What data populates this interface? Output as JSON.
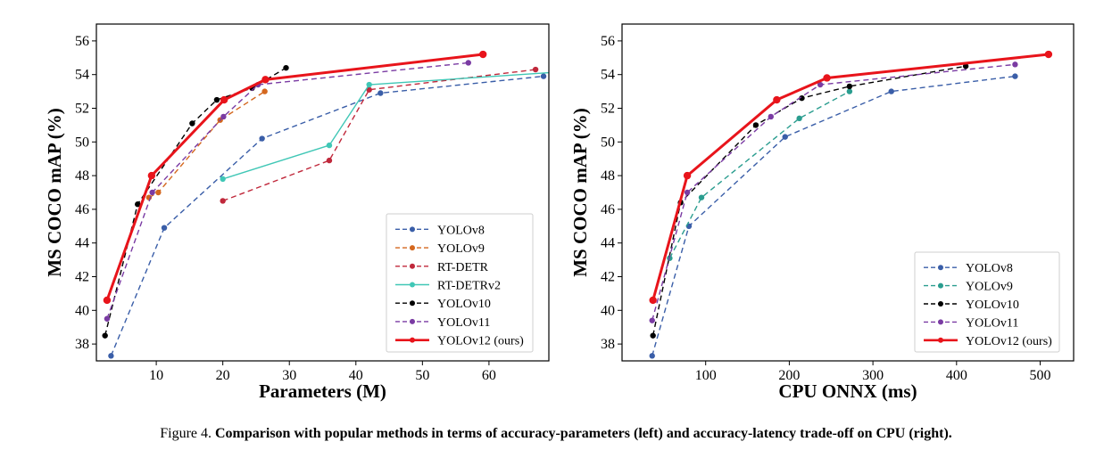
{
  "caption": {
    "label": "Figure 4.",
    "text": "Comparison with popular methods in terms of accuracy-parameters (left) and accuracy-latency trade-off on CPU (right)."
  },
  "chart_data": [
    {
      "type": "line",
      "xlabel": "Parameters (M)",
      "ylabel": "MS COCO mAP (%)",
      "xlim": [
        1,
        69
      ],
      "ylim": [
        37,
        57
      ],
      "xticks": [
        10,
        20,
        30,
        40,
        50,
        60
      ],
      "yticks": [
        38,
        40,
        42,
        44,
        46,
        48,
        50,
        52,
        54,
        56
      ],
      "grid": false,
      "legend_position": "lower-right",
      "series": [
        {
          "name": "YOLOv8",
          "color": "#3a5ea8",
          "dashed": true,
          "marker": "circle",
          "x": [
            3.2,
            11.2,
            25.9,
            43.7,
            68.2
          ],
          "y": [
            37.3,
            44.9,
            50.2,
            52.9,
            53.9
          ]
        },
        {
          "name": "YOLOv9",
          "color": "#d4671e",
          "dashed": true,
          "marker": "circle",
          "x": [
            8.9,
            10.3,
            19.6,
            26.3
          ],
          "y": [
            46.7,
            47.0,
            51.3,
            53.0
          ]
        },
        {
          "name": "RT-DETR",
          "color": "#c0283b",
          "dashed": true,
          "marker": "circle",
          "x": [
            20.0,
            36.0,
            42.0,
            67.0
          ],
          "y": [
            46.5,
            48.9,
            53.1,
            54.3
          ]
        },
        {
          "name": "RT-DETRv2",
          "color": "#40c7b6",
          "dashed": false,
          "marker": "circle",
          "x": [
            20.0,
            36.0,
            42.0,
            76.0
          ],
          "y": [
            47.8,
            49.8,
            53.4,
            54.3
          ]
        },
        {
          "name": "YOLOv10",
          "color": "#000000",
          "dashed": true,
          "marker": "circle",
          "x": [
            2.3,
            7.2,
            15.4,
            19.1,
            24.4,
            29.5
          ],
          "y": [
            38.5,
            46.3,
            51.1,
            52.5,
            53.2,
            54.4
          ]
        },
        {
          "name": "YOLOv11",
          "color": "#7a3ba3",
          "dashed": true,
          "marker": "circle",
          "x": [
            2.6,
            9.4,
            20.1,
            25.3,
            56.9
          ],
          "y": [
            39.5,
            47.0,
            51.5,
            53.4,
            54.7
          ]
        },
        {
          "name": "YOLOv12 (ours)",
          "color": "#e8141b",
          "dashed": false,
          "marker": "circle",
          "bold": true,
          "x": [
            2.6,
            9.3,
            20.2,
            26.4,
            59.1
          ],
          "y": [
            40.6,
            48.0,
            52.5,
            53.7,
            55.2
          ]
        }
      ]
    },
    {
      "type": "line",
      "xlabel": "CPU ONNX (ms)",
      "ylabel": "MS COCO mAP (%)",
      "xlim": [
        0,
        540
      ],
      "ylim": [
        37,
        57
      ],
      "xticks": [
        100,
        200,
        300,
        400,
        500
      ],
      "yticks": [
        38,
        40,
        42,
        44,
        46,
        48,
        50,
        52,
        54,
        56
      ],
      "grid": false,
      "legend_position": "lower-right",
      "series": [
        {
          "name": "YOLOv8",
          "color": "#3a5ea8",
          "dashed": true,
          "marker": "circle",
          "x": [
            36,
            80,
            195,
            322,
            470
          ],
          "y": [
            37.3,
            45.0,
            50.3,
            53.0,
            53.9
          ]
        },
        {
          "name": "YOLOv9",
          "color": "#2a9d8f",
          "dashed": true,
          "marker": "circle",
          "x": [
            57,
            95,
            212,
            272
          ],
          "y": [
            43.1,
            46.7,
            51.4,
            53.0
          ]
        },
        {
          "name": "YOLOv10",
          "color": "#000000",
          "dashed": true,
          "marker": "circle",
          "x": [
            37,
            70,
            160,
            215,
            272,
            411
          ],
          "y": [
            38.5,
            46.4,
            51.0,
            52.6,
            53.3,
            54.5
          ]
        },
        {
          "name": "YOLOv11",
          "color": "#7a3ba3",
          "dashed": true,
          "marker": "circle",
          "x": [
            36,
            78,
            178,
            237,
            470
          ],
          "y": [
            39.4,
            47.0,
            51.5,
            53.4,
            54.6
          ]
        },
        {
          "name": "YOLOv12 (ours)",
          "color": "#e8141b",
          "dashed": false,
          "marker": "circle",
          "bold": true,
          "x": [
            37,
            78,
            185,
            245,
            510
          ],
          "y": [
            40.6,
            48.0,
            52.5,
            53.8,
            55.2
          ]
        }
      ]
    }
  ]
}
